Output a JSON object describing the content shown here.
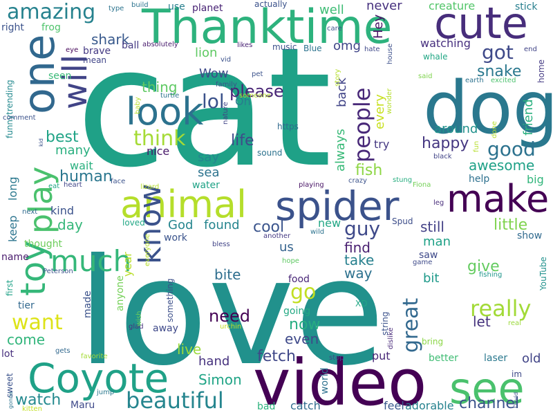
{
  "words": [
    {
      "text": "cat",
      "color": "#1fa187"
    },
    {
      "text": "love",
      "color": "#21918c"
    },
    {
      "text": "video",
      "color": "#440154"
    },
    {
      "text": "dog",
      "color": "#2a788e"
    },
    {
      "text": "Thanktime",
      "color": "#2db27d"
    },
    {
      "text": "spider",
      "color": "#3b528b"
    },
    {
      "text": "animal",
      "color": "#b5de2b"
    },
    {
      "text": "cute",
      "color": "#472d7b"
    },
    {
      "text": "Coyote",
      "color": "#1fa187"
    },
    {
      "text": "see",
      "color": "#4ac16d"
    },
    {
      "text": "one",
      "color": "#31688e"
    },
    {
      "text": "play",
      "color": "#4ac16d"
    },
    {
      "text": "make",
      "color": "#440154"
    },
    {
      "text": "toy",
      "color": "#35b779"
    },
    {
      "text": "know",
      "color": "#3b528b"
    },
    {
      "text": "look",
      "color": "#2c728e"
    },
    {
      "text": "will",
      "color": "#414487"
    },
    {
      "text": "much",
      "color": "#35b779"
    },
    {
      "text": "beautiful",
      "color": "#25858e"
    },
    {
      "text": "really",
      "color": "#a2da37"
    },
    {
      "text": "people",
      "color": "#482878"
    },
    {
      "text": "great",
      "color": "#31688e"
    },
    {
      "text": "amazing",
      "color": "#26828e"
    },
    {
      "text": "guy",
      "color": "#3e4989"
    },
    {
      "text": "want",
      "color": "#dde318"
    },
    {
      "text": "think",
      "color": "#a5db36"
    },
    {
      "text": "go",
      "color": "#c2df23"
    },
    {
      "text": "got",
      "color": "#3e4989"
    },
    {
      "text": "good",
      "color": "#2c728e"
    },
    {
      "text": "lol",
      "color": "#3b528b"
    },
    {
      "text": "please",
      "color": "#482475"
    },
    {
      "text": "fetch",
      "color": "#3f4788"
    },
    {
      "text": "watch",
      "color": "#23898e"
    },
    {
      "text": "happy",
      "color": "#453781"
    },
    {
      "text": "need",
      "color": "#440154"
    },
    {
      "text": "snake",
      "color": "#2a788e"
    },
    {
      "text": "awesome",
      "color": "#1fa187"
    },
    {
      "text": "life",
      "color": "#3e4a89"
    },
    {
      "text": "best",
      "color": "#20a386"
    },
    {
      "text": "little",
      "color": "#7fd34e"
    },
    {
      "text": "channel",
      "color": "#3b528b"
    },
    {
      "text": "now",
      "color": "#26ad81"
    },
    {
      "text": "cool",
      "color": "#3a548c"
    },
    {
      "text": "Simon",
      "color": "#20a486"
    },
    {
      "text": "fish",
      "color": "#8ed645"
    },
    {
      "text": "human",
      "color": "#2a768e"
    },
    {
      "text": "even",
      "color": "#3e4989"
    },
    {
      "text": "give",
      "color": "#63cb5f"
    },
    {
      "text": "come",
      "color": "#31b57b"
    },
    {
      "text": "bite",
      "color": "#2e6e8e"
    },
    {
      "text": "let",
      "color": "#46337e"
    },
    {
      "text": "still",
      "color": "#424086"
    },
    {
      "text": "take",
      "color": "#27808e"
    },
    {
      "text": "find",
      "color": "#481f70"
    },
    {
      "text": "way",
      "color": "#2d718e"
    },
    {
      "text": "lion",
      "color": "#5ec962"
    },
    {
      "text": "thing",
      "color": "#5ec962"
    },
    {
      "text": "shark",
      "color": "#38598c"
    },
    {
      "text": "Wow",
      "color": "#3e4989"
    },
    {
      "text": "omg",
      "color": "#404588"
    },
    {
      "text": "many",
      "color": "#29af7f"
    },
    {
      "text": "say",
      "color": "#24868e"
    },
    {
      "text": "found",
      "color": "#25848e"
    },
    {
      "text": "day",
      "color": "#35b779"
    },
    {
      "text": "God",
      "color": "#25858e"
    },
    {
      "text": "live",
      "color": "#9bd93c"
    },
    {
      "text": "old",
      "color": "#414487"
    },
    {
      "text": "around",
      "color": "#21918c"
    },
    {
      "text": "friend",
      "color": "#2ab07f"
    },
    {
      "text": "never",
      "color": "#46307e"
    },
    {
      "text": "every",
      "color": "#c8e020"
    },
    {
      "text": "always",
      "color": "#38b977"
    },
    {
      "text": "back",
      "color": "#414487"
    },
    {
      "text": "man",
      "color": "#1fa187"
    },
    {
      "text": "well",
      "color": "#3dbc74"
    },
    {
      "text": "Hey",
      "color": "#471164"
    },
    {
      "text": "hand",
      "color": "#46327e"
    },
    {
      "text": "sea",
      "color": "#2c738e"
    },
    {
      "text": "keep",
      "color": "#2b748e"
    },
    {
      "text": "long",
      "color": "#2a788e"
    },
    {
      "text": "us",
      "color": "#33628d"
    },
    {
      "text": "bit",
      "color": "#1f9a8a"
    },
    {
      "text": "year",
      "color": "#b8de29"
    },
    {
      "text": "put",
      "color": "#482878"
    },
    {
      "text": "try",
      "color": "#453882"
    },
    {
      "text": "new",
      "color": "#22a785"
    },
    {
      "text": "nice",
      "color": "#48186a"
    },
    {
      "text": "Oh",
      "color": "#287d8e"
    },
    {
      "text": "wait",
      "color": "#2ab07f"
    },
    {
      "text": "kind",
      "color": "#3b528b"
    },
    {
      "text": "help",
      "color": "#2d708e"
    },
    {
      "text": "big",
      "color": "#31b57b"
    },
    {
      "text": "water",
      "color": "#20a386"
    },
    {
      "text": "food",
      "color": "#482576"
    },
    {
      "text": "going",
      "color": "#23a983"
    },
    {
      "text": "catch",
      "color": "#2f6c8e"
    },
    {
      "text": "feel",
      "color": "#38598c"
    },
    {
      "text": "adorable",
      "color": "#26828e"
    },
    {
      "text": "better",
      "color": "#3fbc73"
    },
    {
      "text": "laser",
      "color": "#2a788e"
    },
    {
      "text": "watching",
      "color": "#462f7e"
    },
    {
      "text": "creature",
      "color": "#52c569"
    },
    {
      "text": "frog",
      "color": "#4ec36b"
    },
    {
      "text": "right",
      "color": "#3b528b"
    },
    {
      "text": "brave",
      "color": "#443983"
    },
    {
      "text": "ball",
      "color": "#443983"
    },
    {
      "text": "planet",
      "color": "#482374"
    },
    {
      "text": "use",
      "color": "#277f8e"
    },
    {
      "text": "seen",
      "color": "#38b977"
    },
    {
      "text": "thought",
      "color": "#6ccd5a"
    },
    {
      "text": "name",
      "color": "#481a6c"
    },
    {
      "text": "Maru",
      "color": "#3e4989"
    },
    {
      "text": "bad",
      "color": "#2db27d"
    },
    {
      "text": "lot",
      "color": "#472f7d"
    },
    {
      "text": "sweet",
      "color": "#3b528b"
    },
    {
      "text": "world",
      "color": "#2d718e"
    },
    {
      "text": "something",
      "color": "#3c4f8a"
    },
    {
      "text": "anyone",
      "color": "#73d056"
    },
    {
      "text": "made",
      "color": "#3b528b"
    },
    {
      "text": "tier",
      "color": "#31688e"
    },
    {
      "text": "first",
      "color": "#1fa187"
    },
    {
      "text": "work",
      "color": "#3a538b"
    },
    {
      "text": "loved",
      "color": "#22a785"
    },
    {
      "text": "show",
      "color": "#306a8e"
    },
    {
      "text": "YouTube",
      "color": "#21918c"
    },
    {
      "text": "saw",
      "color": "#3e4989"
    },
    {
      "text": "Spud",
      "color": "#3d4d8a"
    },
    {
      "text": "stick",
      "color": "#277f8e"
    },
    {
      "text": "whale",
      "color": "#22a785"
    },
    {
      "text": "home",
      "color": "#443a83"
    },
    {
      "text": "funnytrending",
      "color": "#23898e"
    },
    {
      "text": "absolutely",
      "color": "#481b6d"
    },
    {
      "text": "actually",
      "color": "#3b528b"
    },
    {
      "text": "music",
      "color": "#3c4f8a"
    },
    {
      "text": "Blue",
      "color": "#2c738e"
    },
    {
      "text": "house",
      "color": "#3c4f8a"
    },
    {
      "text": "mean",
      "color": "#404588"
    },
    {
      "text": "eye",
      "color": "#46075a"
    },
    {
      "text": "likes",
      "color": "#482173"
    },
    {
      "text": "hate",
      "color": "#3f4889"
    },
    {
      "text": "end",
      "color": "#414487"
    },
    {
      "text": "said",
      "color": "#7fd34e"
    },
    {
      "text": "earth",
      "color": "#2c728e"
    },
    {
      "text": "excited",
      "color": "#4ac16d"
    },
    {
      "text": "https",
      "color": "#306a8e"
    },
    {
      "text": "sound",
      "color": "#2c728e"
    },
    {
      "text": "crazy",
      "color": "#3b528b"
    },
    {
      "text": "playing",
      "color": "#471365"
    },
    {
      "text": "stung",
      "color": "#28ae80"
    },
    {
      "text": "Fiona",
      "color": "#73d056"
    },
    {
      "text": "leg",
      "color": "#472c7a"
    },
    {
      "text": "dislike",
      "color": "#482979"
    },
    {
      "text": "string",
      "color": "#3b528b"
    },
    {
      "text": "game",
      "color": "#3e4a89"
    },
    {
      "text": "fishing",
      "color": "#1f968b"
    },
    {
      "text": "real",
      "color": "#9bd93c"
    },
    {
      "text": "bring",
      "color": "#8bd646"
    },
    {
      "text": "XD",
      "color": "#22a785"
    },
    {
      "text": "stop",
      "color": "#3e4989"
    },
    {
      "text": "im",
      "color": "#3e4989"
    },
    {
      "text": "David",
      "color": "#3b528b"
    },
    {
      "text": "gonna",
      "color": "#2c738e"
    },
    {
      "text": "kitten",
      "color": "#c2df23"
    },
    {
      "text": "jump",
      "color": "#2a788e"
    },
    {
      "text": "favorite",
      "color": "#a5db36"
    },
    {
      "text": "gets",
      "color": "#31688e"
    },
    {
      "text": "glad",
      "color": "#46337e"
    },
    {
      "text": "away",
      "color": "#3e4989"
    },
    {
      "text": "wish",
      "color": "#6ccd5a"
    },
    {
      "text": "urchin",
      "color": "#c2df23"
    },
    {
      "text": "bless",
      "color": "#414487"
    },
    {
      "text": "hope",
      "color": "#5ec962"
    },
    {
      "text": "another",
      "color": "#443983"
    },
    {
      "text": "wild",
      "color": "#2c728e"
    },
    {
      "text": "everyone",
      "color": "#b5de2b"
    },
    {
      "text": "Peterson",
      "color": "#3b528b"
    },
    {
      "text": "lizard",
      "color": "#b5de2b"
    },
    {
      "text": "face",
      "color": "#3b528b"
    },
    {
      "text": "heart",
      "color": "#404588"
    },
    {
      "text": "eat",
      "color": "#22a785"
    },
    {
      "text": "next",
      "color": "#306a8e"
    },
    {
      "text": "comment",
      "color": "#3b528b"
    },
    {
      "text": "kid",
      "color": "#3b528b"
    },
    {
      "text": "nature",
      "color": "#414487"
    },
    {
      "text": "baby",
      "color": "#b5de2b"
    },
    {
      "text": "turtle",
      "color": "#2c738e"
    },
    {
      "text": "family",
      "color": "#3b528b"
    },
    {
      "text": "someone",
      "color": "#b5de2b"
    },
    {
      "text": "pet",
      "color": "#3b528b"
    },
    {
      "text": "vid",
      "color": "#3b528b"
    },
    {
      "text": "story",
      "color": "#b5de2b"
    },
    {
      "text": "wonder",
      "color": "#b5de2b"
    },
    {
      "text": "black",
      "color": "#414487"
    },
    {
      "text": "fun",
      "color": "#b5de2b"
    },
    {
      "text": "done",
      "color": "#b5de2b"
    },
    {
      "text": "care",
      "color": "#3b528b"
    },
    {
      "text": "type",
      "color": "#2c738e"
    },
    {
      "text": "build",
      "color": "#2c738e"
    }
  ]
}
